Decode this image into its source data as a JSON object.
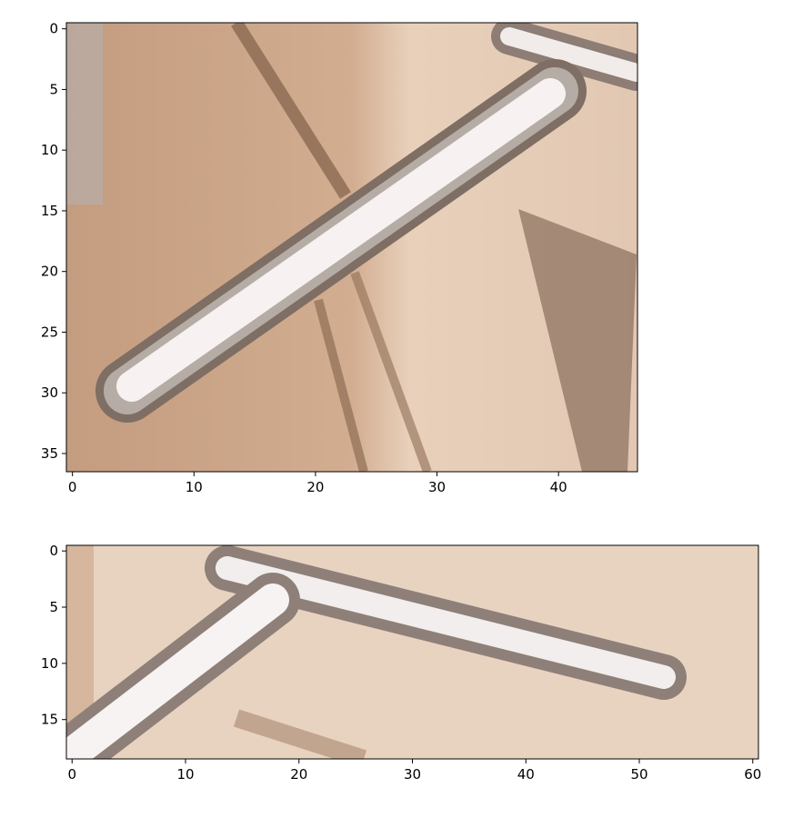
{
  "chart_data": [
    {
      "type": "image",
      "xlim": [
        -0.5,
        46.5
      ],
      "ylim": [
        36.5,
        -0.5
      ],
      "xticks": [
        0,
        10,
        20,
        30,
        40
      ],
      "yticks": [
        0,
        5,
        10,
        15,
        20,
        25,
        30,
        35
      ]
    },
    {
      "type": "image",
      "xlim": [
        -0.5,
        60.5
      ],
      "ylim": [
        18.5,
        -0.5
      ],
      "xticks": [
        0,
        10,
        20,
        30,
        40,
        50,
        60
      ],
      "yticks": [
        0,
        5,
        10,
        15
      ]
    }
  ]
}
